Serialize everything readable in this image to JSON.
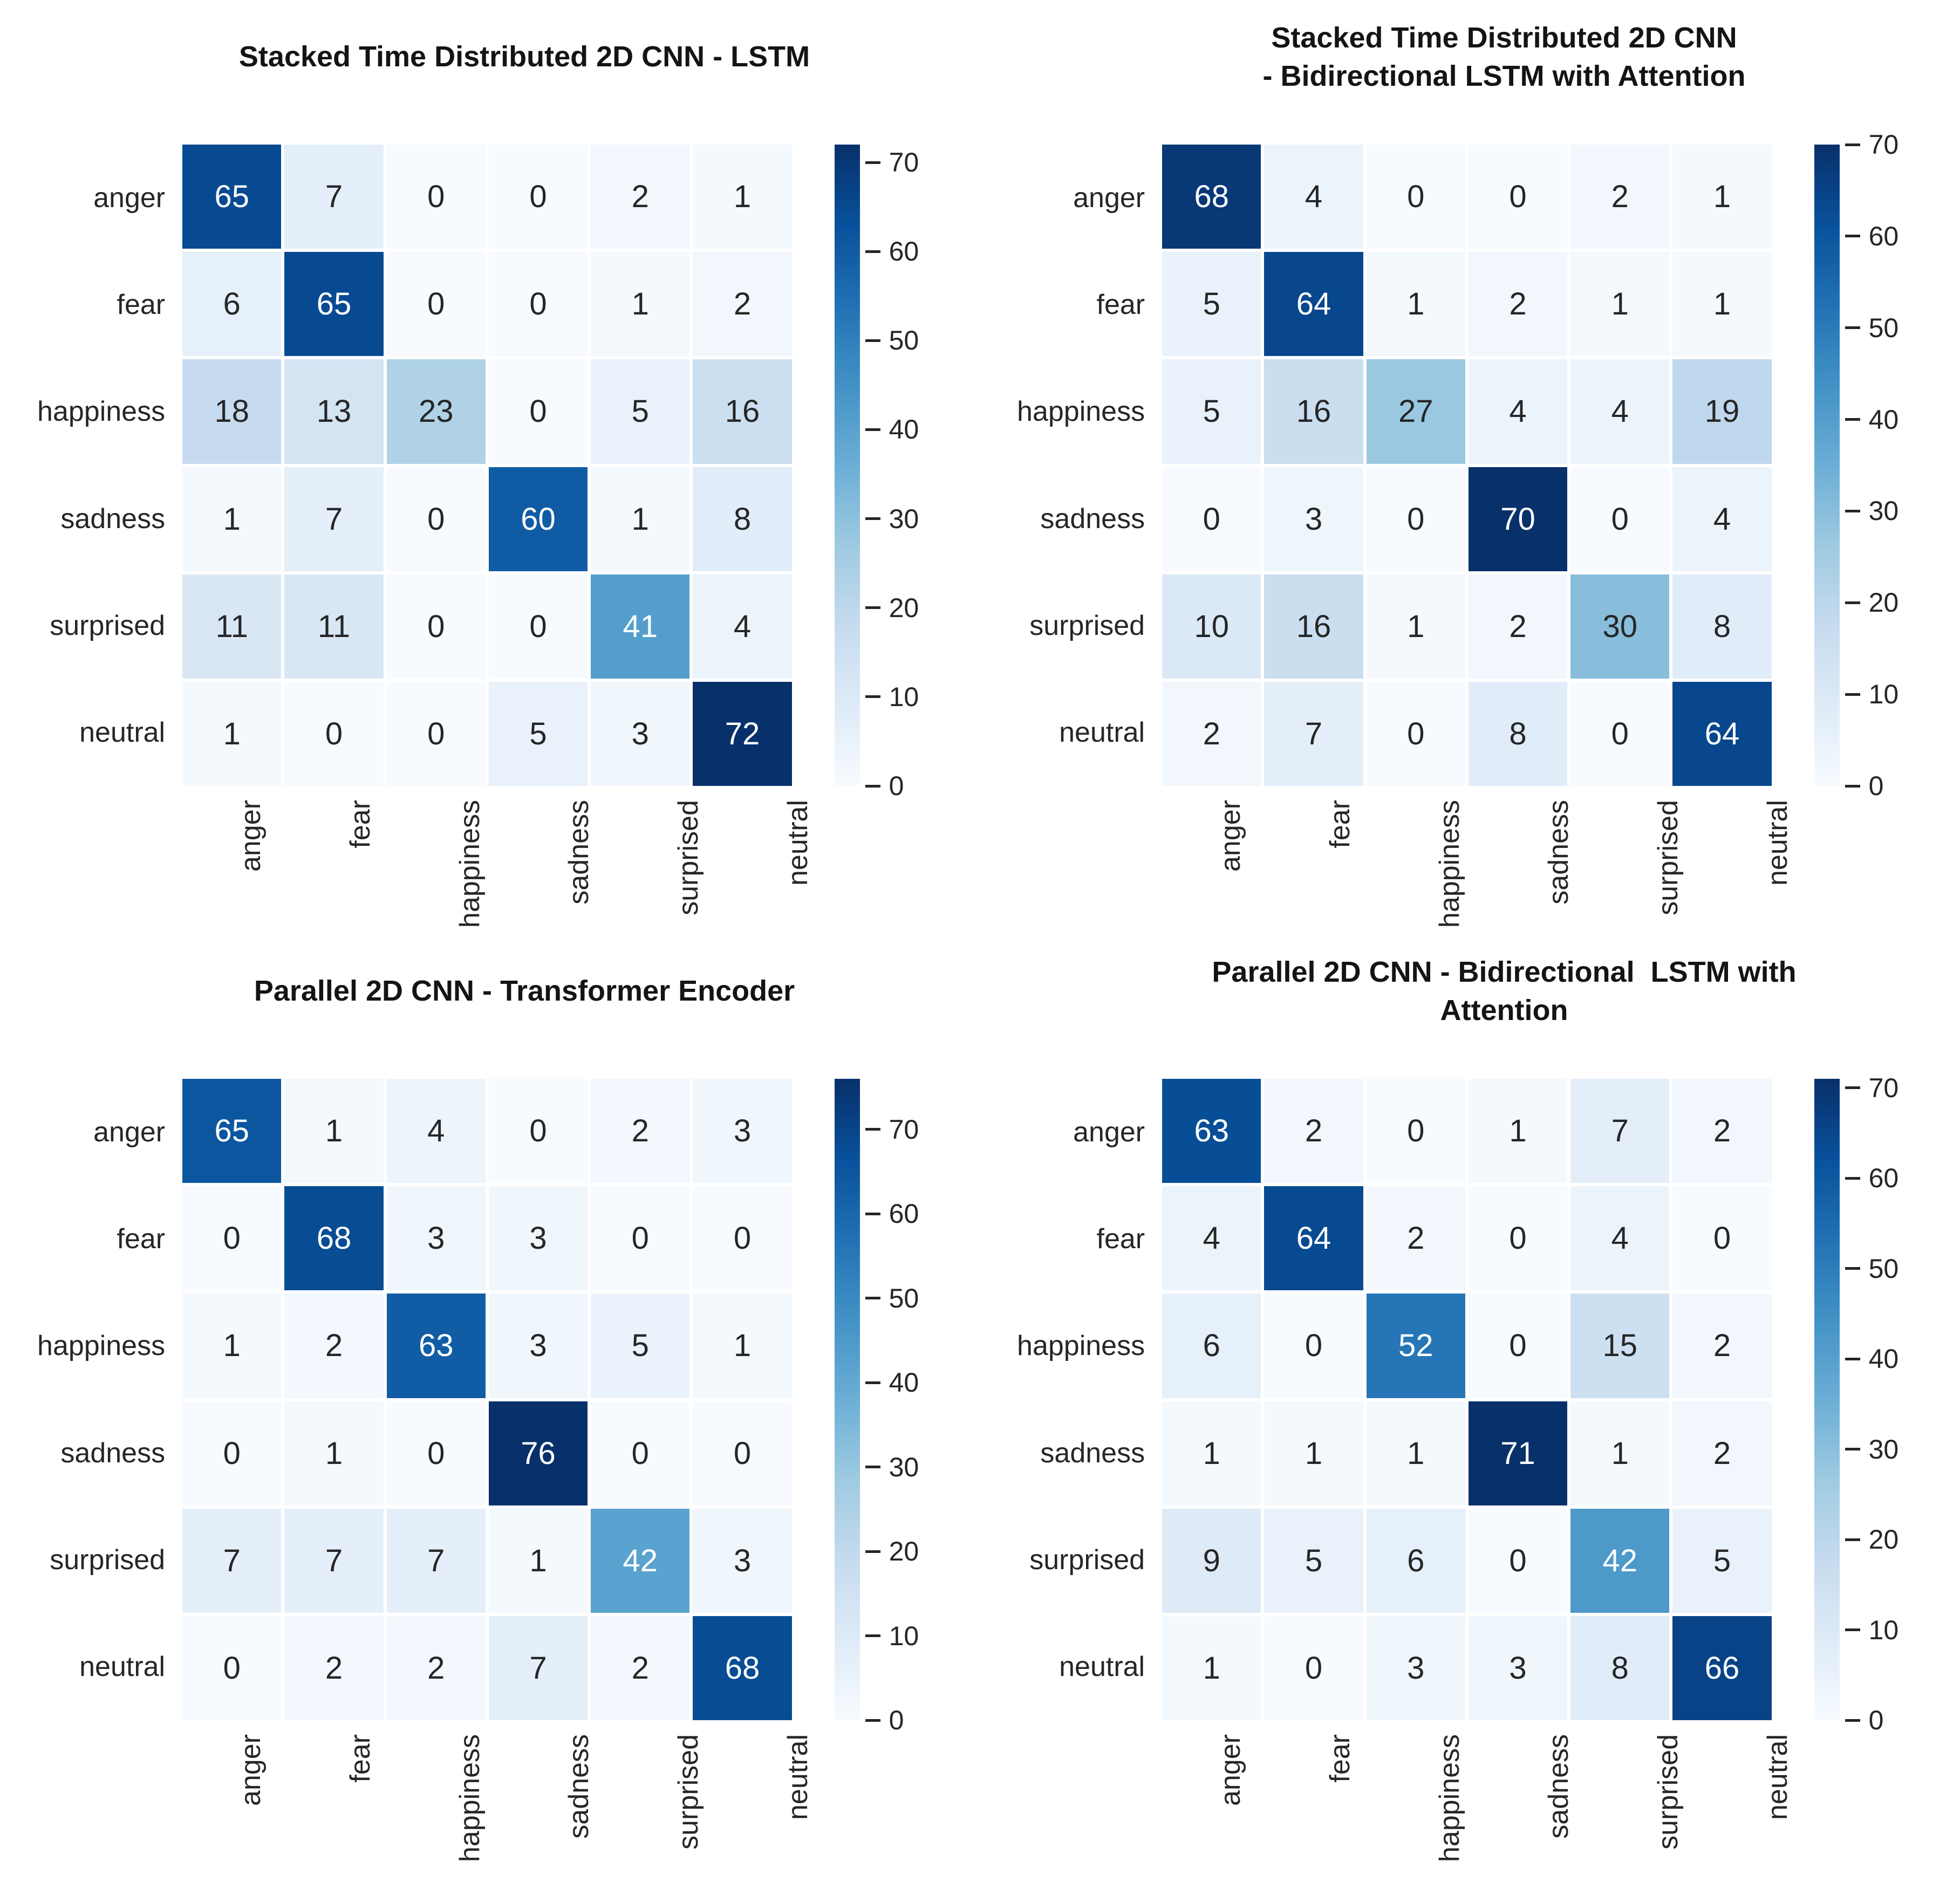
{
  "figure": {
    "description_labels": [
      "anger",
      "fear",
      "happiness",
      "sadness",
      "surprised",
      "neutral"
    ]
  },
  "emotions": [
    "anger",
    "fear",
    "happiness",
    "sadness",
    "surprised",
    "neutral"
  ],
  "colorbar": {
    "ticks": [
      0,
      10,
      20,
      30,
      40,
      50,
      60,
      70
    ]
  },
  "colors": {
    "colormap_name": "Blues",
    "cmap_low": "#f7fbff",
    "cmap_high": "#08306b",
    "text_dark": "#262626",
    "text_light": "#ffffff",
    "title_color": "#141414",
    "background": "#ffffff"
  },
  "chart_data": [
    {
      "type": "heatmap",
      "position": "top-left",
      "title": "Stacked Time Distributed 2D CNN - LSTM",
      "x_categories": [
        "anger",
        "fear",
        "happiness",
        "sadness",
        "surprised",
        "neutral"
      ],
      "y_categories": [
        "anger",
        "fear",
        "happiness",
        "sadness",
        "surprised",
        "neutral"
      ],
      "matrix": [
        [
          65,
          7,
          0,
          0,
          2,
          1
        ],
        [
          6,
          65,
          0,
          0,
          1,
          2
        ],
        [
          18,
          13,
          23,
          0,
          5,
          16
        ],
        [
          1,
          7,
          0,
          60,
          1,
          8
        ],
        [
          11,
          11,
          0,
          0,
          41,
          4
        ],
        [
          1,
          0,
          0,
          5,
          3,
          72
        ]
      ],
      "vmin": 0,
      "vmax": 72,
      "colorbar_ticks": [
        0,
        10,
        20,
        30,
        40,
        50,
        60,
        70
      ],
      "legend_position": "right"
    },
    {
      "type": "heatmap",
      "position": "top-right",
      "title": "Stacked Time Distributed 2D CNN",
      "title_line2": "- Bidirectional LSTM with Attention",
      "x_categories": [
        "anger",
        "fear",
        "happiness",
        "sadness",
        "surprised",
        "neutral"
      ],
      "y_categories": [
        "anger",
        "fear",
        "happiness",
        "sadness",
        "surprised",
        "neutral"
      ],
      "matrix": [
        [
          68,
          4,
          0,
          0,
          2,
          1
        ],
        [
          5,
          64,
          1,
          2,
          1,
          1
        ],
        [
          5,
          16,
          27,
          4,
          4,
          19
        ],
        [
          0,
          3,
          0,
          70,
          0,
          4
        ],
        [
          10,
          16,
          1,
          2,
          30,
          8
        ],
        [
          2,
          7,
          0,
          8,
          0,
          64
        ]
      ],
      "vmin": 0,
      "vmax": 70,
      "colorbar_ticks": [
        0,
        10,
        20,
        30,
        40,
        50,
        60,
        70
      ],
      "legend_position": "right"
    },
    {
      "type": "heatmap",
      "position": "bottom-left",
      "title": "Parallel 2D CNN - Transformer Encoder",
      "x_categories": [
        "anger",
        "fear",
        "happiness",
        "sadness",
        "surprised",
        "neutral"
      ],
      "y_categories": [
        "anger",
        "fear",
        "happiness",
        "sadness",
        "surprised",
        "neutral"
      ],
      "matrix": [
        [
          65,
          1,
          4,
          0,
          2,
          3
        ],
        [
          0,
          68,
          3,
          3,
          0,
          0
        ],
        [
          1,
          2,
          63,
          3,
          5,
          1
        ],
        [
          0,
          1,
          0,
          76,
          0,
          0
        ],
        [
          7,
          7,
          7,
          1,
          42,
          3
        ],
        [
          0,
          2,
          2,
          7,
          2,
          68
        ]
      ],
      "vmin": 0,
      "vmax": 76,
      "colorbar_ticks": [
        0,
        10,
        20,
        30,
        40,
        50,
        60,
        70
      ],
      "legend_position": "right"
    },
    {
      "type": "heatmap",
      "position": "bottom-right",
      "title": "Parallel 2D CNN - Bidirectional  LSTM with Attention",
      "x_categories": [
        "anger",
        "fear",
        "happiness",
        "sadness",
        "surprised",
        "neutral"
      ],
      "y_categories": [
        "anger",
        "fear",
        "happiness",
        "sadness",
        "surprised",
        "neutral"
      ],
      "matrix": [
        [
          63,
          2,
          0,
          1,
          7,
          2
        ],
        [
          4,
          64,
          2,
          0,
          4,
          0
        ],
        [
          6,
          0,
          52,
          0,
          15,
          2
        ],
        [
          1,
          1,
          1,
          71,
          1,
          2
        ],
        [
          9,
          5,
          6,
          0,
          42,
          5
        ],
        [
          1,
          0,
          3,
          3,
          8,
          66
        ]
      ],
      "vmin": 0,
      "vmax": 71,
      "colorbar_ticks": [
        0,
        10,
        20,
        30,
        40,
        50,
        60,
        70
      ],
      "legend_position": "right"
    }
  ]
}
